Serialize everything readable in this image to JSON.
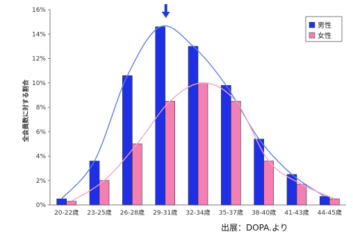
{
  "chart_data": {
    "type": "bar",
    "ylabel": "全会員数に対する割合",
    "ylim": [
      0,
      16
    ],
    "yticks": [
      "0%",
      "2%",
      "4%",
      "6%",
      "8%",
      "10%",
      "12%",
      "14%",
      "16%"
    ],
    "categories": [
      "20-22歳",
      "23-25歳",
      "26-28歳",
      "29-31歳",
      "32-34歳",
      "35-37歳",
      "38-40歳",
      "41-43歳",
      "44-45歳"
    ],
    "series": [
      {
        "name": "男性",
        "color": "#1f2fe6",
        "values": [
          0.5,
          3.6,
          10.6,
          14.6,
          13.0,
          9.8,
          5.4,
          2.5,
          0.7
        ]
      },
      {
        "name": "女性",
        "color": "#f47fb2",
        "values": [
          0.3,
          2.0,
          5.0,
          8.5,
          10.0,
          8.5,
          3.6,
          1.7,
          0.5
        ]
      }
    ],
    "trendlines": [
      {
        "series": "男性",
        "color": "#5b7fe6"
      },
      {
        "series": "女性",
        "color": "#f4a0c6"
      }
    ],
    "marker": "arrow-down-icon at 29-31歳",
    "legend": "top-right",
    "grid": false,
    "source": "出展：DOPA.より"
  }
}
